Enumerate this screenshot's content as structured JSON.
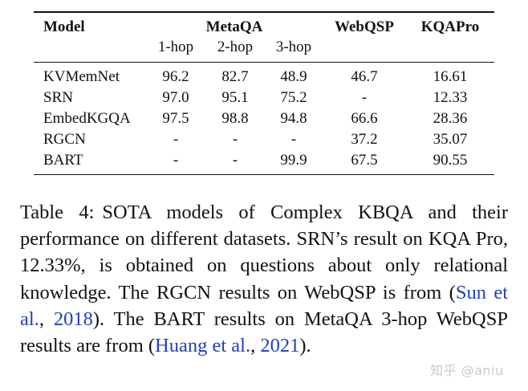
{
  "table": {
    "header": {
      "model": "Model",
      "metaqa": "MetaQA",
      "webqsp": "WebQSP",
      "kqapro": "KQAPro",
      "subcols": [
        "1-hop",
        "2-hop",
        "3-hop"
      ]
    },
    "rows": [
      {
        "model": "KVMemNet",
        "hop1": "96.2",
        "hop2": "82.7",
        "hop3": "48.9",
        "webqsp": "46.7",
        "kqapro": "16.61"
      },
      {
        "model": "SRN",
        "hop1": "97.0",
        "hop2": "95.1",
        "hop3": "75.2",
        "webqsp": "-",
        "kqapro": "12.33"
      },
      {
        "model": "EmbedKGQA",
        "hop1": "97.5",
        "hop2": "98.8",
        "hop3": "94.8",
        "webqsp": "66.6",
        "kqapro": "28.36"
      },
      {
        "model": "RGCN",
        "hop1": "-",
        "hop2": "-",
        "hop3": "-",
        "webqsp": "37.2",
        "kqapro": "35.07"
      },
      {
        "model": "BART",
        "hop1": "-",
        "hop2": "-",
        "hop3": "99.9",
        "webqsp": "67.5",
        "kqapro": "90.55"
      }
    ]
  },
  "caption": {
    "label": "Table 4:",
    "text1": "SOTA models of Complex KBQA and their performance on different datasets.  SRN’s result on KQA Pro, 12.33%, is obtained on questions about only relational knowledge.  The RGCN results on WebQSP is from (",
    "cite1_author": "Sun et al.",
    "sep1": ", ",
    "cite1_year": "2018",
    "text2": ").  The BART results on MetaQA 3-hop WebQSP results are from (",
    "cite2_author": "Huang et al.",
    "sep2": ", ",
    "cite2_year": "2021",
    "text3": ")."
  },
  "watermark": "知乎 @aniu"
}
